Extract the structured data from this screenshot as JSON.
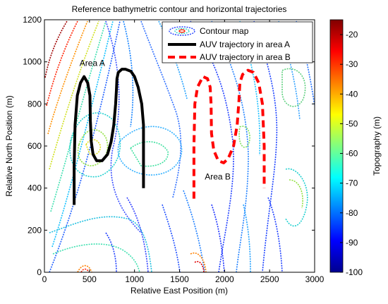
{
  "chart_data": {
    "type": "line",
    "title": "Reference bathymetric contour and horizontal trajectories",
    "xlabel": "Relative East Position (m)",
    "ylabel": "Relative North Position (m)",
    "xlim": [
      0,
      3000
    ],
    "ylim": [
      0,
      1200
    ],
    "xticks": [
      0,
      500,
      1000,
      1500,
      2000,
      2500,
      3000
    ],
    "yticks": [
      0,
      200,
      400,
      600,
      800,
      1000,
      1200
    ],
    "grid": false,
    "legend_position": "top-right",
    "legend": [
      "Contour map",
      "AUV trajectory in area A",
      "AUV trajectory in area B"
    ],
    "annotations": [
      {
        "text": "Area A",
        "x": 390,
        "y": 980
      },
      {
        "text": "Area B",
        "x": 1780,
        "y": 440
      }
    ],
    "colorbar": {
      "label": "Topography (m)",
      "min": -100,
      "max": -15,
      "ticks": [
        -20,
        -30,
        -40,
        -50,
        -60,
        -70,
        -80,
        -90,
        -100
      ]
    },
    "series": [
      {
        "name": "AUV trajectory in area A",
        "color": "#000000",
        "style": "solid",
        "x": [
          330,
          330,
          340,
          365,
          400,
          440,
          480,
          505,
          510,
          520,
          540,
          580,
          640,
          700,
          740,
          770,
          790,
          800,
          805,
          820,
          860,
          900,
          960,
          1000,
          1040,
          1080,
          1100,
          1100,
          1100
        ],
        "y": [
          320,
          500,
          700,
          840,
          900,
          930,
          900,
          840,
          720,
          620,
          560,
          530,
          530,
          560,
          620,
          700,
          800,
          870,
          920,
          950,
          965,
          965,
          955,
          930,
          880,
          800,
          700,
          550,
          400
        ]
      },
      {
        "name": "AUV trajectory in area B",
        "color": "#ff0000",
        "style": "dashed",
        "x": [
          1660,
          1660,
          1670,
          1700,
          1760,
          1810,
          1840,
          1850,
          1855,
          1880,
          1930,
          1990,
          2040,
          2100,
          2140,
          2160,
          2170,
          2200,
          2260,
          2320,
          2380,
          2420,
          2440,
          2440
        ],
        "y": [
          350,
          600,
          800,
          880,
          930,
          920,
          880,
          800,
          660,
          580,
          530,
          520,
          540,
          600,
          700,
          820,
          900,
          940,
          960,
          950,
          900,
          800,
          600,
          400
        ]
      }
    ]
  }
}
